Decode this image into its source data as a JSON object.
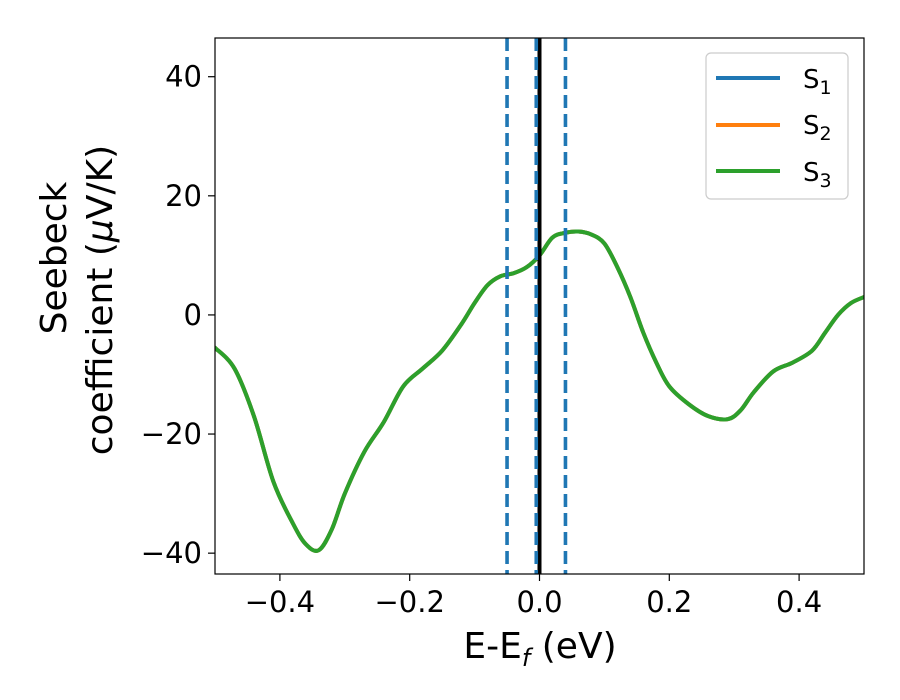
{
  "chart_data": {
    "type": "line",
    "xlabel": "E-E",
    "xlabel_sub": "f",
    "xlabel_unit": " (eV)",
    "ylabel_line1": "Seebeck",
    "ylabel_line2_prefix": "coefficient  (",
    "ylabel_mu": "μ",
    "ylabel_line2_suffix": "V/K)",
    "xlim": [
      -0.5,
      0.5
    ],
    "ylim": [
      -43.5,
      46.5
    ],
    "xticks": [
      -0.4,
      -0.2,
      0.0,
      0.2,
      0.4
    ],
    "xtick_labels": [
      "−0.4",
      "−0.2",
      "0.0",
      "0.2",
      "0.4"
    ],
    "yticks": [
      -40,
      -20,
      0,
      20,
      40
    ],
    "ytick_labels": [
      "−40",
      "−20",
      "0",
      "20",
      "40"
    ],
    "grid": false,
    "legend_position": "top-right",
    "series": [
      {
        "name": "S",
        "sub": "1",
        "color": "#1f77b4",
        "x": [
          -0.5,
          -0.47,
          -0.44,
          -0.41,
          -0.38,
          -0.36,
          -0.34,
          -0.32,
          -0.3,
          -0.27,
          -0.24,
          -0.21,
          -0.18,
          -0.15,
          -0.12,
          -0.1,
          -0.08,
          -0.06,
          -0.04,
          -0.02,
          0.0,
          0.02,
          0.04,
          0.06,
          0.08,
          0.1,
          0.12,
          0.14,
          0.16,
          0.18,
          0.2,
          0.23,
          0.26,
          0.29,
          0.31,
          0.33,
          0.36,
          0.39,
          0.42,
          0.44,
          0.46,
          0.48,
          0.5
        ],
        "y": [
          -5.5,
          -9,
          -17,
          -28,
          -35,
          -38.5,
          -39.5,
          -36,
          -30,
          -23,
          -18,
          -12,
          -9,
          -6,
          -1.5,
          2,
          5,
          6.5,
          7,
          8,
          10,
          13,
          13.8,
          14,
          13.5,
          12,
          8,
          3,
          -3,
          -8,
          -12,
          -15,
          -17,
          -17.5,
          -16,
          -13,
          -9.5,
          -8,
          -6,
          -3,
          0,
          2,
          3
        ]
      },
      {
        "name": "S",
        "sub": "2",
        "color": "#ff7f0e",
        "x": [
          -0.5,
          -0.47,
          -0.44,
          -0.41,
          -0.38,
          -0.36,
          -0.34,
          -0.32,
          -0.3,
          -0.27,
          -0.24,
          -0.21,
          -0.18,
          -0.15,
          -0.12,
          -0.1,
          -0.08,
          -0.06,
          -0.04,
          -0.02,
          0.0,
          0.02,
          0.04,
          0.06,
          0.08,
          0.1,
          0.12,
          0.14,
          0.16,
          0.18,
          0.2,
          0.23,
          0.26,
          0.29,
          0.31,
          0.33,
          0.36,
          0.39,
          0.42,
          0.44,
          0.46,
          0.48,
          0.5
        ],
        "y": [
          -5.5,
          -9,
          -17,
          -28,
          -35,
          -38.5,
          -39.5,
          -36,
          -30,
          -23,
          -18,
          -12,
          -9,
          -6,
          -1.5,
          2,
          5,
          6.5,
          7,
          8,
          10,
          13,
          13.8,
          14,
          13.5,
          12,
          8,
          3,
          -3,
          -8,
          -12,
          -15,
          -17,
          -17.5,
          -16,
          -13,
          -9.5,
          -8,
          -6,
          -3,
          0,
          2,
          3
        ]
      },
      {
        "name": "S",
        "sub": "3",
        "color": "#2ca02c",
        "x": [
          -0.5,
          -0.47,
          -0.44,
          -0.41,
          -0.38,
          -0.36,
          -0.34,
          -0.32,
          -0.3,
          -0.27,
          -0.24,
          -0.21,
          -0.18,
          -0.15,
          -0.12,
          -0.1,
          -0.08,
          -0.06,
          -0.04,
          -0.02,
          0.0,
          0.02,
          0.04,
          0.06,
          0.08,
          0.1,
          0.12,
          0.14,
          0.16,
          0.18,
          0.2,
          0.23,
          0.26,
          0.29,
          0.31,
          0.33,
          0.36,
          0.39,
          0.42,
          0.44,
          0.46,
          0.48,
          0.5
        ],
        "y": [
          -5.5,
          -9,
          -17,
          -28,
          -35,
          -38.5,
          -39.5,
          -36,
          -30,
          -23,
          -18,
          -12,
          -9,
          -6,
          -1.5,
          2,
          5,
          6.5,
          7,
          8,
          10,
          13,
          13.8,
          14,
          13.5,
          12,
          8,
          3,
          -3,
          -8,
          -12,
          -15,
          -17,
          -17.5,
          -16,
          -13,
          -9.5,
          -8,
          -6,
          -3,
          0,
          2,
          3
        ]
      }
    ],
    "vlines": [
      {
        "x": 0.0,
        "style": "solid",
        "color": "#000000"
      },
      {
        "x": -0.05,
        "style": "dashed",
        "color": "#1f77b4"
      },
      {
        "x": -0.005,
        "style": "dashed",
        "color": "#1f77b4"
      },
      {
        "x": 0.04,
        "style": "dashed",
        "color": "#1f77b4"
      }
    ]
  }
}
